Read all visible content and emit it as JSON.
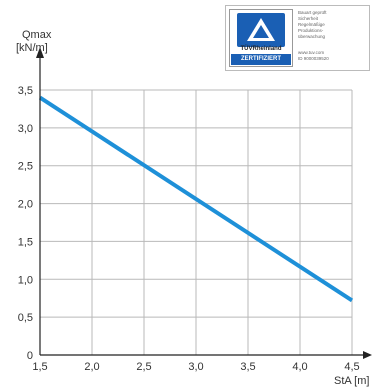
{
  "badge": {
    "brand": "TÜVRheinland",
    "certified": "ZERTIFIZIERT",
    "lines": [
      "Bauart geprüft",
      "Sicherheit",
      "Regelmäßige",
      "Produktions-",
      "überwachung"
    ],
    "web": "www.tuv.com",
    "id": "ID 9000039520",
    "colors": {
      "blue": "#1a5fb4",
      "accent": "#1e88d0"
    }
  },
  "chart_data": {
    "type": "line",
    "ylabel_line1": "Qmax",
    "ylabel_line2": "[kN/m]",
    "xlabel": "StA [m]",
    "xlim": [
      1.5,
      4.5
    ],
    "ylim": [
      0,
      3.5
    ],
    "x_ticks": [
      "1,5",
      "2,0",
      "2,5",
      "3,0",
      "3,5",
      "4,0",
      "4,5"
    ],
    "y_ticks": [
      "0",
      "0,5",
      "1,0",
      "1,5",
      "2,0",
      "2,5",
      "3,0",
      "3,5"
    ],
    "grid": true,
    "series": [
      {
        "color": "#1e90d8",
        "x": [
          1.5,
          4.5
        ],
        "y": [
          3.4,
          0.72
        ]
      }
    ]
  }
}
